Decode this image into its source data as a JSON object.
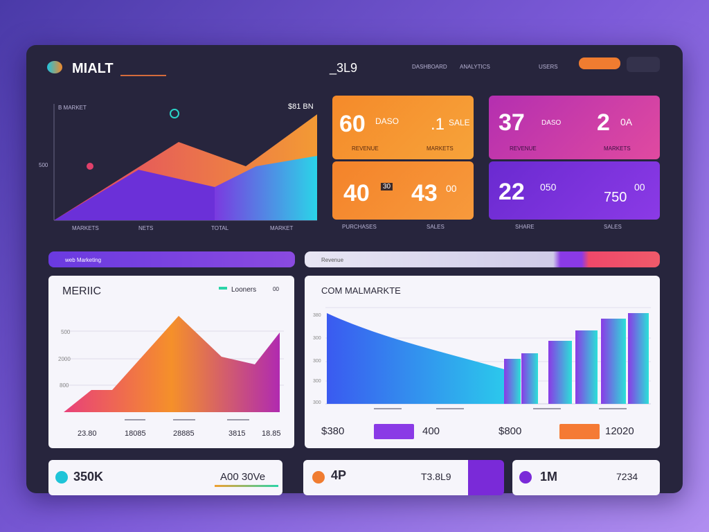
{
  "header": {
    "logo": "MIALT",
    "center": "_3L9",
    "nav": [
      "DASHBOARD",
      "ANALYTICS",
      "USERS"
    ]
  },
  "top_chart": {
    "label": "B MARKET",
    "value": "$81 BN",
    "y_label": "500",
    "x_labels": [
      "MARKETS",
      "NETS",
      "TOTAL",
      "MARKET"
    ]
  },
  "stat_cards": [
    {
      "value": "60",
      "sub": "DASO",
      "value2": ".1",
      "sub2": "SALE",
      "caption": "REVENUE",
      "caption2": "MARKETS"
    },
    {
      "value": "40",
      "sub": "30",
      "value2": "43",
      "sub2": "00",
      "caption": "PURCHASES",
      "caption2": "SALES"
    },
    {
      "value": "37",
      "sub": "DASO",
      "value2": "2",
      "sub2": "0A",
      "caption": "REVENUE",
      "caption2": "MARKETS"
    },
    {
      "value": "22",
      "sub": "050",
      "value2": "750",
      "sub2": "00",
      "caption": "SHARE",
      "caption2": "SALES"
    }
  ],
  "bars": {
    "left": "web Marketing",
    "right": "Revenue"
  },
  "left_card": {
    "title": "MERIIC",
    "legend": "Looners",
    "legend_value": "00",
    "y_labels": [
      "500",
      "2000",
      "800"
    ],
    "x_labels": [
      "23.80",
      "18085",
      "28885",
      "3815",
      "18.85"
    ]
  },
  "right_card": {
    "title": "COM MALMARKTE",
    "y_labels": [
      "380",
      "300",
      "300",
      "300",
      "300"
    ],
    "footer": [
      "$380",
      "400",
      "$800",
      "12020"
    ]
  },
  "bottom_cards": [
    {
      "value": "350K",
      "note": "A00 30Ve"
    },
    {
      "value": "4P",
      "note": "T3.8L9"
    },
    {
      "value": "1M",
      "note": "7234"
    }
  ]
}
